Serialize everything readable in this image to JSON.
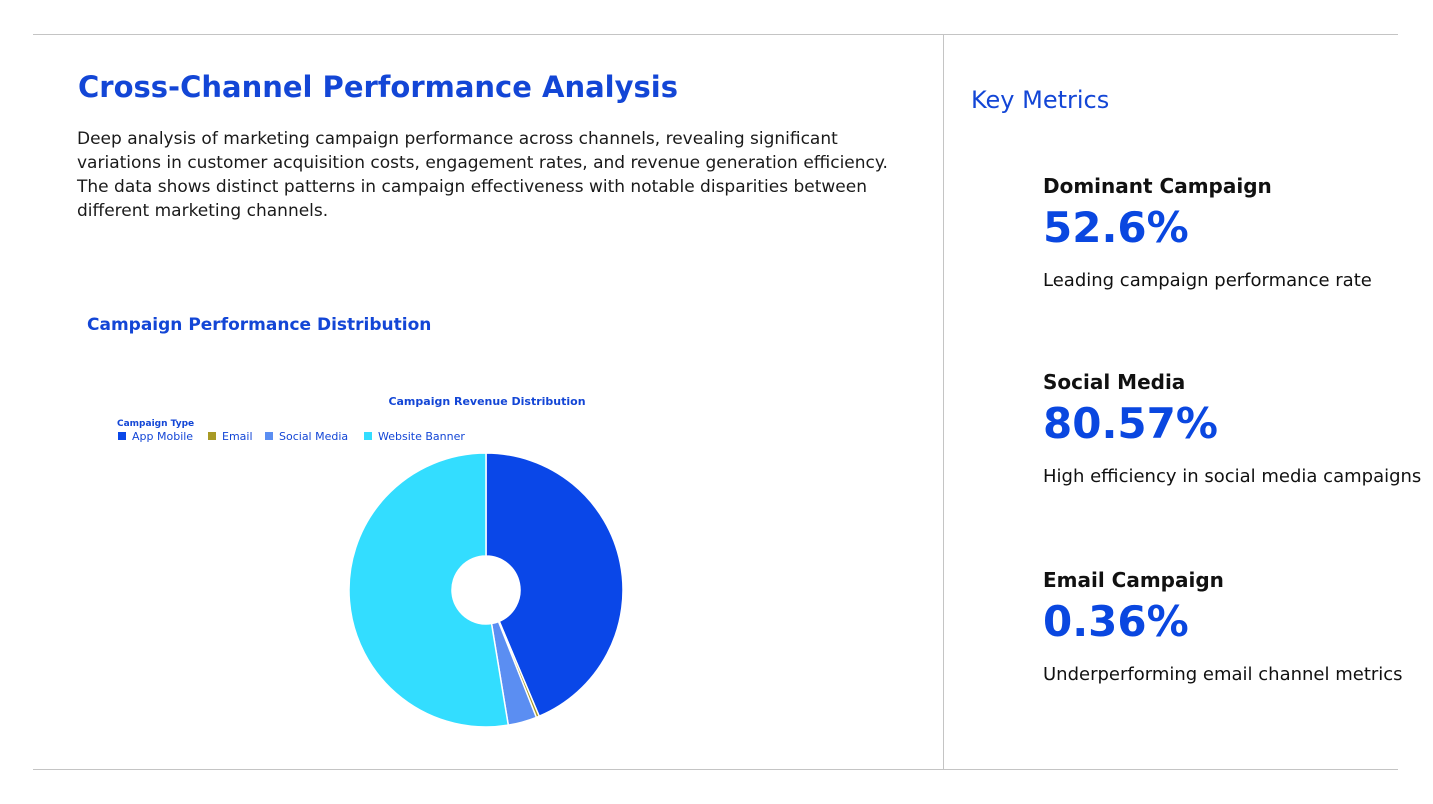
{
  "header": {
    "title": "Cross-Channel Performance Analysis",
    "description": "Deep analysis of marketing campaign performance across channels, revealing significant variations in customer acquisition costs, engagement rates, and revenue generation efficiency. The data shows distinct patterns in campaign effectiveness with notable disparities between different marketing channels."
  },
  "chart_section": {
    "heading": "Campaign Performance Distribution"
  },
  "chart_data": {
    "type": "pie",
    "title": "Campaign Revenue Distribution",
    "legend_title": "Campaign Type",
    "legend_position": "top-left",
    "hole": true,
    "categories": [
      "App Mobile",
      "Email",
      "Social Media",
      "Website Banner"
    ],
    "values": [
      43.65,
      0.36,
      3.39,
      52.6
    ],
    "colors": [
      "#0a47e8",
      "#a89a25",
      "#5b8ef2",
      "#33ddff"
    ]
  },
  "key_metrics": {
    "title": "Key Metrics",
    "items": [
      {
        "label": "Dominant Campaign",
        "value": "52.6%",
        "description": "Leading campaign performance rate"
      },
      {
        "label": "Social Media",
        "value": "80.57%",
        "description": "High efficiency in social media campaigns"
      },
      {
        "label": "Email Campaign",
        "value": "0.36%",
        "description": "Underperforming email channel metrics"
      }
    ]
  }
}
